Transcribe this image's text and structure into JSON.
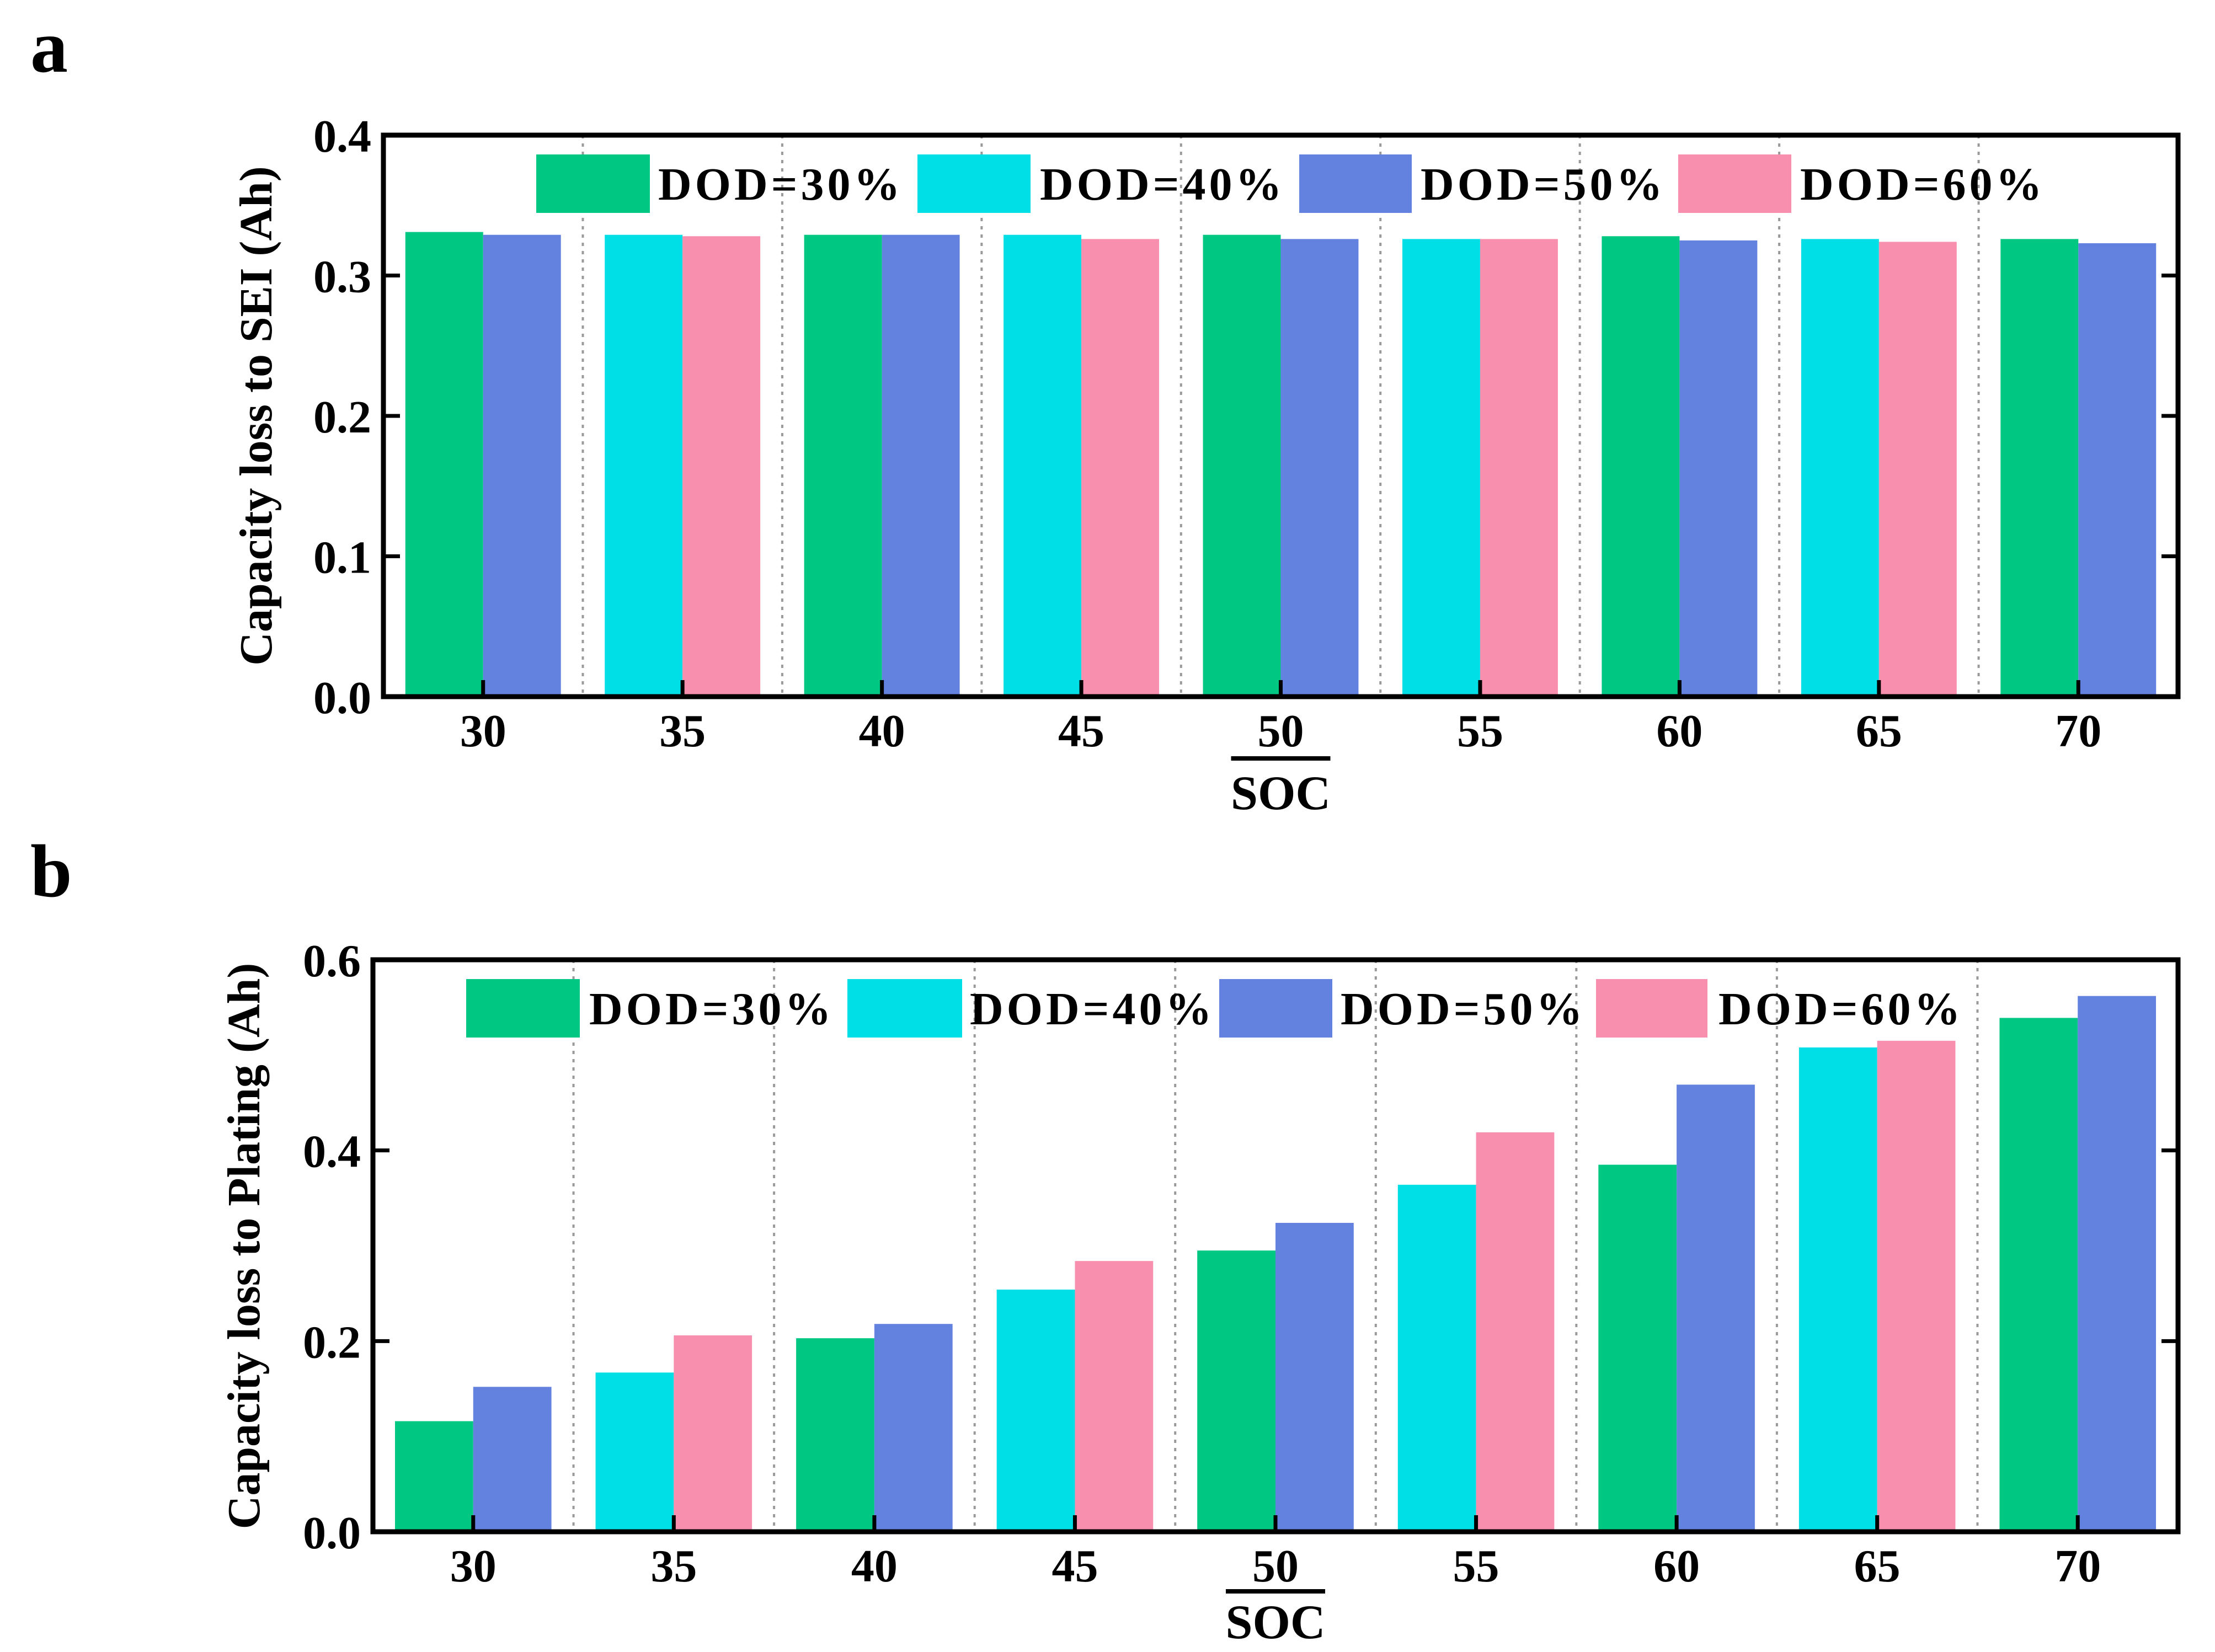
{
  "colors": {
    "DOD=30%": "#00c781",
    "DOD=40%": "#00dfe6",
    "DOD=50%": "#6381de",
    "DOD=60%": "#f98fae"
  },
  "chart_data": [
    {
      "panel_label": "a",
      "type": "bar",
      "xlabel": "SOC",
      "ylabel": "Capacity loss to SEI (Ah)",
      "ylim": [
        0,
        0.4
      ],
      "yticks": [
        "0.0",
        "0.1",
        "0.2",
        "0.3",
        "0.4"
      ],
      "categories": [
        "30",
        "35",
        "40",
        "45",
        "50",
        "55",
        "60",
        "65",
        "70"
      ],
      "grid": "vertical dotted separators between categories",
      "legend": {
        "placement": "top",
        "entries": [
          "DOD=30%",
          "DOD=40%",
          "DOD=50%",
          "DOD=60%"
        ]
      },
      "groups": [
        {
          "soc": "30",
          "bars": [
            {
              "series": "DOD=30%",
              "value": 0.331
            },
            {
              "series": "DOD=50%",
              "value": 0.329
            }
          ]
        },
        {
          "soc": "35",
          "bars": [
            {
              "series": "DOD=40%",
              "value": 0.329
            },
            {
              "series": "DOD=60%",
              "value": 0.328
            }
          ]
        },
        {
          "soc": "40",
          "bars": [
            {
              "series": "DOD=30%",
              "value": 0.329
            },
            {
              "series": "DOD=50%",
              "value": 0.329
            }
          ]
        },
        {
          "soc": "45",
          "bars": [
            {
              "series": "DOD=40%",
              "value": 0.329
            },
            {
              "series": "DOD=60%",
              "value": 0.326
            }
          ]
        },
        {
          "soc": "50",
          "bars": [
            {
              "series": "DOD=30%",
              "value": 0.329
            },
            {
              "series": "DOD=50%",
              "value": 0.326
            }
          ]
        },
        {
          "soc": "55",
          "bars": [
            {
              "series": "DOD=40%",
              "value": 0.326
            },
            {
              "series": "DOD=60%",
              "value": 0.326
            }
          ]
        },
        {
          "soc": "60",
          "bars": [
            {
              "series": "DOD=30%",
              "value": 0.328
            },
            {
              "series": "DOD=50%",
              "value": 0.325
            }
          ]
        },
        {
          "soc": "65",
          "bars": [
            {
              "series": "DOD=40%",
              "value": 0.326
            },
            {
              "series": "DOD=60%",
              "value": 0.324
            }
          ]
        },
        {
          "soc": "70",
          "bars": [
            {
              "series": "DOD=30%",
              "value": 0.326
            },
            {
              "series": "DOD=50%",
              "value": 0.323
            }
          ]
        }
      ]
    },
    {
      "panel_label": "b",
      "type": "bar",
      "xlabel": "SOC",
      "ylabel": "Capacity loss to Plating (Ah)",
      "ylim": [
        0,
        0.6
      ],
      "yticks": [
        "0.0",
        "0.2",
        "0.4",
        "0.6"
      ],
      "categories": [
        "30",
        "35",
        "40",
        "45",
        "50",
        "55",
        "60",
        "65",
        "70"
      ],
      "grid": "vertical dotted separators between categories",
      "legend": {
        "placement": "top",
        "entries": [
          "DOD=30%",
          "DOD=40%",
          "DOD=50%",
          "DOD=60%"
        ]
      },
      "groups": [
        {
          "soc": "30",
          "bars": [
            {
              "series": "DOD=30%",
              "value": 0.116
            },
            {
              "series": "DOD=50%",
              "value": 0.152
            }
          ]
        },
        {
          "soc": "35",
          "bars": [
            {
              "series": "DOD=40%",
              "value": 0.167
            },
            {
              "series": "DOD=60%",
              "value": 0.206
            }
          ]
        },
        {
          "soc": "40",
          "bars": [
            {
              "series": "DOD=30%",
              "value": 0.203
            },
            {
              "series": "DOD=50%",
              "value": 0.218
            }
          ]
        },
        {
          "soc": "45",
          "bars": [
            {
              "series": "DOD=40%",
              "value": 0.254
            },
            {
              "series": "DOD=60%",
              "value": 0.284
            }
          ]
        },
        {
          "soc": "50",
          "bars": [
            {
              "series": "DOD=30%",
              "value": 0.295
            },
            {
              "series": "DOD=50%",
              "value": 0.324
            }
          ]
        },
        {
          "soc": "55",
          "bars": [
            {
              "series": "DOD=40%",
              "value": 0.364
            },
            {
              "series": "DOD=60%",
              "value": 0.419
            }
          ]
        },
        {
          "soc": "60",
          "bars": [
            {
              "series": "DOD=30%",
              "value": 0.385
            },
            {
              "series": "DOD=50%",
              "value": 0.469
            }
          ]
        },
        {
          "soc": "65",
          "bars": [
            {
              "series": "DOD=40%",
              "value": 0.508
            },
            {
              "series": "DOD=60%",
              "value": 0.515
            }
          ]
        },
        {
          "soc": "70",
          "bars": [
            {
              "series": "DOD=30%",
              "value": 0.539
            },
            {
              "series": "DOD=50%",
              "value": 0.562
            }
          ]
        }
      ]
    }
  ]
}
